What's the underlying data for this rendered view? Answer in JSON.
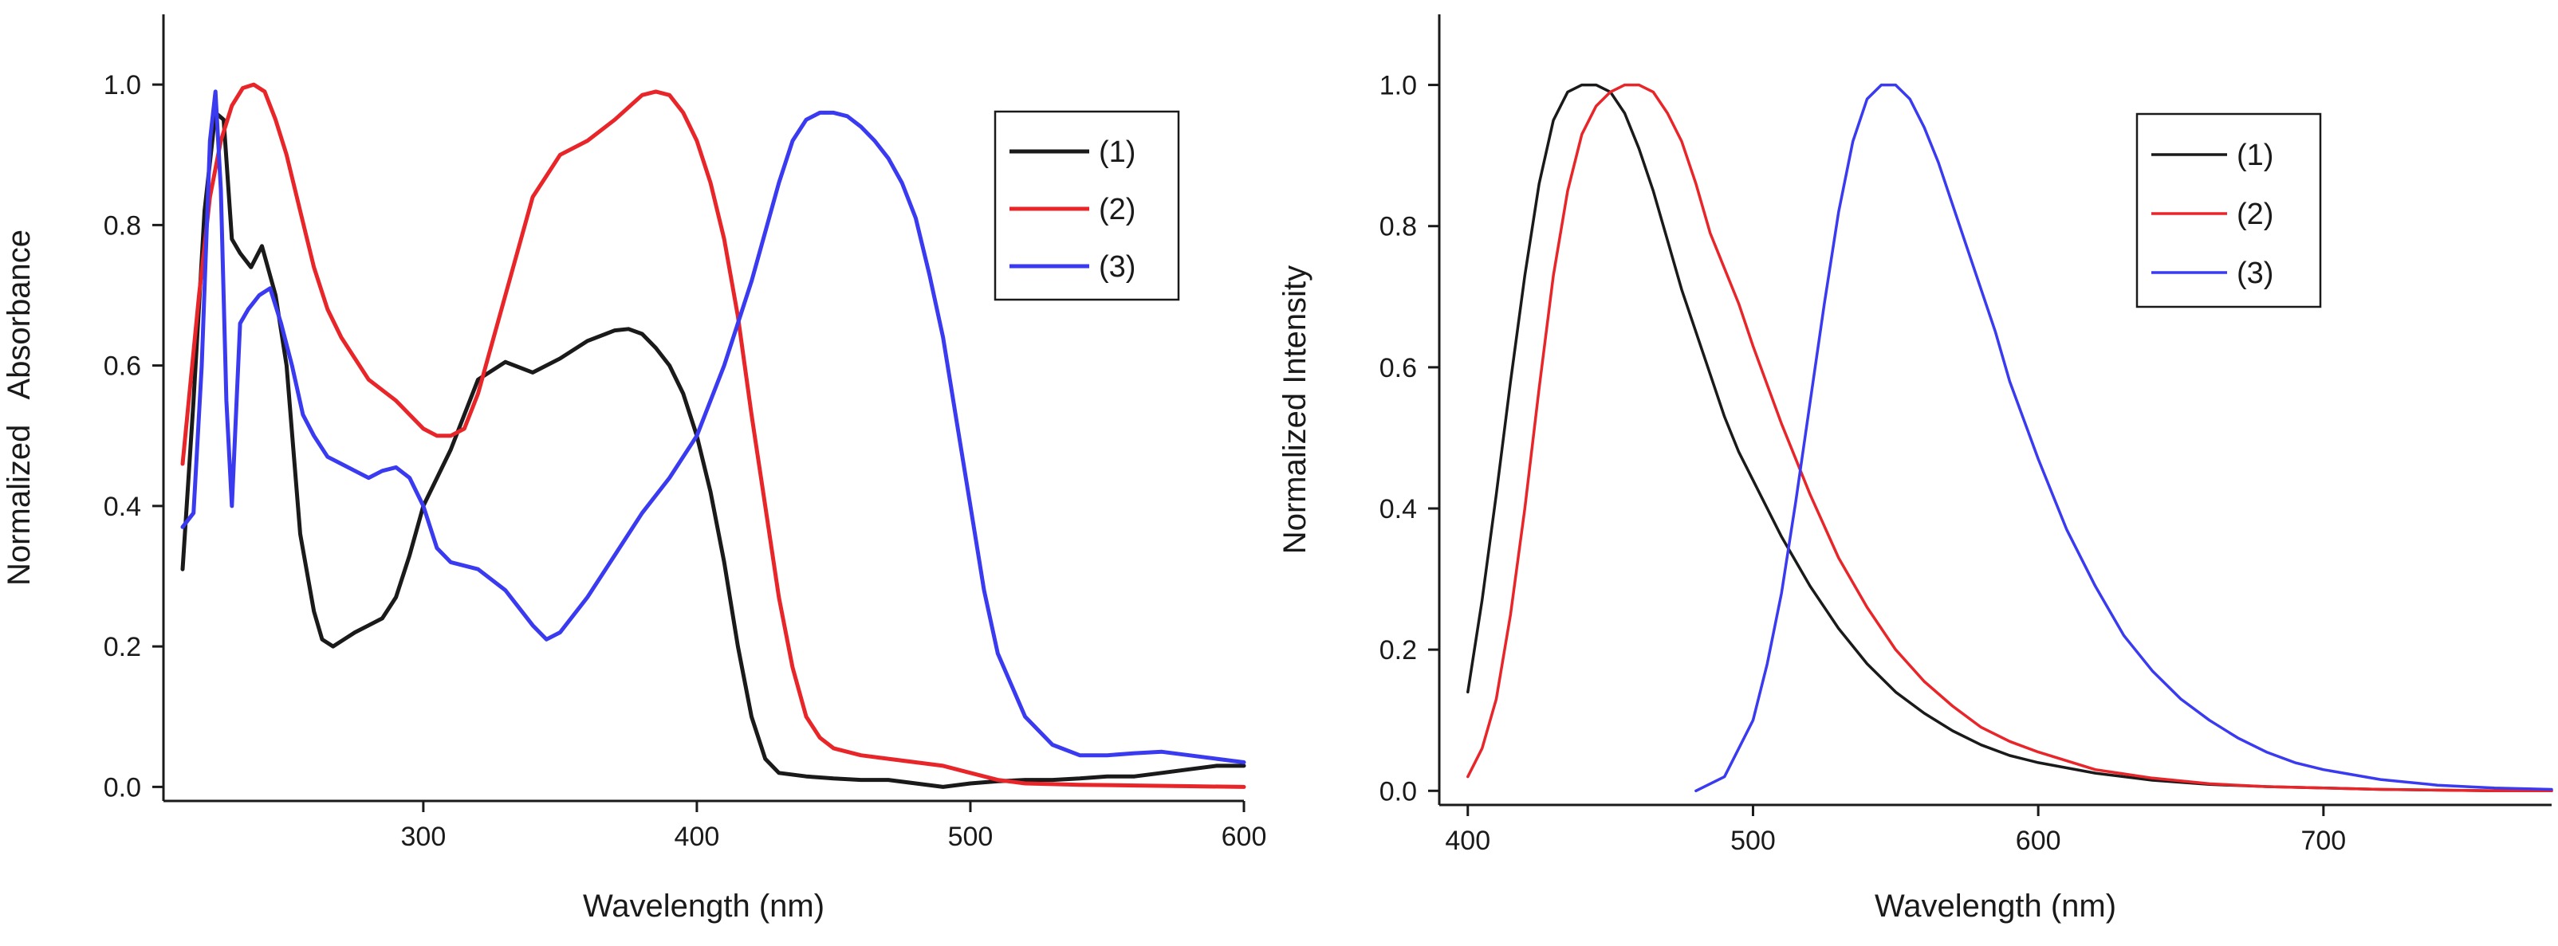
{
  "chart_data": [
    {
      "id": "absorbance",
      "type": "line",
      "title": "",
      "xlabel": "Wavelength (nm)",
      "ylabel": "Normalized   Absorbance",
      "xlim": [
        205,
        600
      ],
      "ylim": [
        -0.02,
        1.1
      ],
      "xticks": [
        300,
        400,
        500,
        600
      ],
      "xtick_labels": [
        "300",
        "400",
        "500",
        "600"
      ],
      "yticks": [
        0.0,
        0.2,
        0.4,
        0.6,
        0.8,
        1.0
      ],
      "ytick_labels": [
        "0.0",
        "0.2",
        "0.4",
        "0.6",
        "0.8",
        "1.0"
      ],
      "legend_position": "top-right",
      "series": [
        {
          "name": "(1)",
          "color": "#1a1a1a",
          "x": [
            212,
            216,
            220,
            224,
            227,
            230,
            233,
            237,
            241,
            246,
            250,
            255,
            260,
            263,
            267,
            271,
            275,
            280,
            285,
            290,
            295,
            300,
            310,
            320,
            330,
            340,
            350,
            360,
            370,
            375,
            380,
            385,
            390,
            395,
            400,
            405,
            410,
            415,
            420,
            425,
            430,
            440,
            450,
            460,
            470,
            480,
            490,
            500,
            510,
            520,
            530,
            540,
            550,
            560,
            570,
            580,
            590,
            600
          ],
          "y": [
            0.31,
            0.55,
            0.82,
            0.96,
            0.95,
            0.78,
            0.76,
            0.74,
            0.77,
            0.7,
            0.6,
            0.36,
            0.25,
            0.21,
            0.2,
            0.21,
            0.22,
            0.23,
            0.24,
            0.27,
            0.33,
            0.4,
            0.48,
            0.58,
            0.605,
            0.59,
            0.61,
            0.635,
            0.65,
            0.652,
            0.645,
            0.625,
            0.6,
            0.56,
            0.5,
            0.42,
            0.32,
            0.2,
            0.1,
            0.04,
            0.02,
            0.015,
            0.012,
            0.01,
            0.01,
            0.005,
            0.0,
            0.005,
            0.008,
            0.01,
            0.01,
            0.012,
            0.015,
            0.015,
            0.02,
            0.025,
            0.03,
            0.03
          ]
        },
        {
          "name": "(2)",
          "color": "#e8262a",
          "x": [
            212,
            215,
            218,
            222,
            226,
            230,
            234,
            238,
            242,
            246,
            250,
            255,
            260,
            265,
            270,
            280,
            290,
            300,
            305,
            310,
            315,
            320,
            330,
            340,
            345,
            350,
            360,
            370,
            380,
            385,
            390,
            395,
            400,
            405,
            410,
            415,
            420,
            425,
            430,
            435,
            440,
            445,
            450,
            460,
            470,
            480,
            490,
            500,
            510,
            520,
            540,
            560,
            580,
            600
          ],
          "y": [
            0.46,
            0.58,
            0.7,
            0.84,
            0.92,
            0.97,
            0.995,
            1.0,
            0.99,
            0.95,
            0.9,
            0.82,
            0.74,
            0.68,
            0.64,
            0.58,
            0.55,
            0.51,
            0.5,
            0.5,
            0.51,
            0.56,
            0.7,
            0.84,
            0.87,
            0.9,
            0.92,
            0.95,
            0.985,
            0.99,
            0.985,
            0.96,
            0.92,
            0.86,
            0.78,
            0.67,
            0.53,
            0.4,
            0.27,
            0.17,
            0.1,
            0.07,
            0.055,
            0.045,
            0.04,
            0.035,
            0.03,
            0.02,
            0.01,
            0.005,
            0.003,
            0.002,
            0.001,
            0.0
          ]
        },
        {
          "name": "(3)",
          "color": "#3a3af0",
          "x": [
            212,
            216,
            219,
            222,
            224,
            226,
            228,
            230,
            233,
            236,
            240,
            244,
            248,
            252,
            256,
            260,
            265,
            270,
            275,
            280,
            285,
            290,
            295,
            300,
            305,
            310,
            320,
            330,
            340,
            345,
            350,
            360,
            370,
            380,
            390,
            400,
            410,
            420,
            430,
            435,
            440,
            445,
            450,
            455,
            460,
            465,
            470,
            475,
            480,
            485,
            490,
            495,
            500,
            505,
            510,
            520,
            530,
            540,
            550,
            560,
            570,
            580,
            590,
            600
          ],
          "y": [
            0.37,
            0.39,
            0.6,
            0.92,
            0.99,
            0.85,
            0.55,
            0.4,
            0.66,
            0.68,
            0.7,
            0.71,
            0.66,
            0.6,
            0.53,
            0.5,
            0.47,
            0.46,
            0.45,
            0.44,
            0.45,
            0.455,
            0.44,
            0.4,
            0.34,
            0.32,
            0.31,
            0.28,
            0.23,
            0.21,
            0.22,
            0.27,
            0.33,
            0.39,
            0.44,
            0.5,
            0.6,
            0.72,
            0.86,
            0.92,
            0.95,
            0.96,
            0.96,
            0.955,
            0.94,
            0.92,
            0.895,
            0.86,
            0.81,
            0.73,
            0.64,
            0.52,
            0.4,
            0.28,
            0.19,
            0.1,
            0.06,
            0.045,
            0.045,
            0.048,
            0.05,
            0.045,
            0.04,
            0.035
          ]
        }
      ]
    },
    {
      "id": "emission",
      "type": "line",
      "title": "",
      "xlabel": "Wavelength (nm)",
      "ylabel": "Normalized Intensity",
      "xlim": [
        390,
        780
      ],
      "ylim": [
        -0.02,
        1.1
      ],
      "xticks": [
        400,
        500,
        600,
        700
      ],
      "xtick_labels": [
        "400",
        "500",
        "600",
        "700"
      ],
      "yticks": [
        0.0,
        0.2,
        0.4,
        0.6,
        0.8,
        1.0
      ],
      "ytick_labels": [
        "0.0",
        "0.2",
        "0.4",
        "0.6",
        "0.8",
        "1.0"
      ],
      "legend_position": "top-right",
      "series": [
        {
          "name": "(1)",
          "color": "#1a1a1a",
          "x": [
            400,
            405,
            410,
            415,
            420,
            425,
            430,
            435,
            440,
            445,
            450,
            455,
            460,
            465,
            470,
            475,
            480,
            485,
            490,
            495,
            500,
            510,
            520,
            530,
            540,
            550,
            560,
            570,
            580,
            590,
            600,
            620,
            640,
            660,
            680,
            700,
            720,
            740,
            760,
            780
          ],
          "y": [
            0.14,
            0.27,
            0.42,
            0.58,
            0.73,
            0.86,
            0.95,
            0.99,
            1.0,
            1.0,
            0.99,
            0.96,
            0.91,
            0.85,
            0.78,
            0.71,
            0.65,
            0.59,
            0.53,
            0.48,
            0.44,
            0.36,
            0.29,
            0.23,
            0.18,
            0.14,
            0.11,
            0.085,
            0.065,
            0.05,
            0.04,
            0.025,
            0.015,
            0.009,
            0.006,
            0.004,
            0.002,
            0.001,
            0.0,
            0.0
          ]
        },
        {
          "name": "(2)",
          "color": "#e8262a",
          "x": [
            400,
            405,
            410,
            415,
            420,
            425,
            430,
            435,
            440,
            445,
            450,
            455,
            460,
            465,
            470,
            475,
            480,
            485,
            490,
            495,
            500,
            510,
            520,
            530,
            540,
            550,
            560,
            570,
            580,
            590,
            600,
            620,
            640,
            660,
            680,
            700,
            720,
            740,
            760,
            780
          ],
          "y": [
            0.02,
            0.06,
            0.13,
            0.25,
            0.4,
            0.57,
            0.73,
            0.85,
            0.93,
            0.97,
            0.99,
            1.0,
            1.0,
            0.99,
            0.96,
            0.92,
            0.86,
            0.79,
            0.74,
            0.69,
            0.63,
            0.52,
            0.42,
            0.33,
            0.26,
            0.2,
            0.155,
            0.12,
            0.09,
            0.07,
            0.055,
            0.03,
            0.018,
            0.01,
            0.006,
            0.004,
            0.002,
            0.001,
            0.0,
            0.0
          ]
        },
        {
          "name": "(3)",
          "color": "#3a3af0",
          "x": [
            480,
            490,
            500,
            505,
            510,
            515,
            520,
            525,
            530,
            535,
            540,
            545,
            550,
            555,
            560,
            565,
            570,
            575,
            580,
            585,
            590,
            600,
            610,
            620,
            630,
            640,
            650,
            660,
            670,
            680,
            690,
            700,
            720,
            740,
            760,
            780
          ],
          "y": [
            0.0,
            0.02,
            0.1,
            0.18,
            0.28,
            0.41,
            0.55,
            0.69,
            0.82,
            0.92,
            0.98,
            1.0,
            1.0,
            0.98,
            0.94,
            0.89,
            0.83,
            0.77,
            0.71,
            0.65,
            0.58,
            0.47,
            0.37,
            0.29,
            0.22,
            0.17,
            0.13,
            0.1,
            0.075,
            0.055,
            0.04,
            0.03,
            0.016,
            0.008,
            0.004,
            0.002
          ]
        }
      ]
    }
  ]
}
